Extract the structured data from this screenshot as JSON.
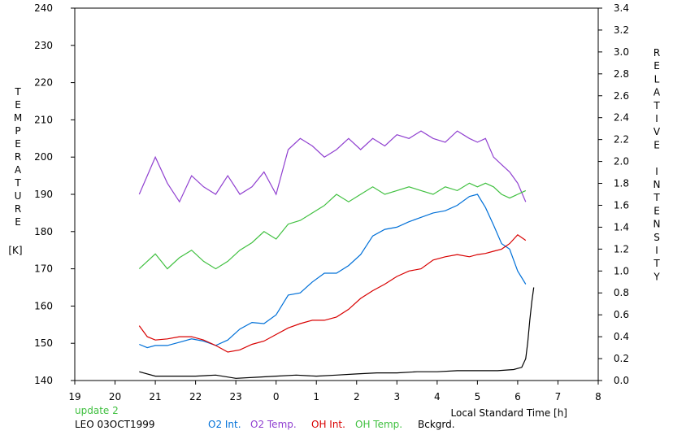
{
  "chart_data": {
    "type": "line",
    "x_axis": {
      "label": "Local Standard Time [h]",
      "range": [
        19,
        32
      ],
      "ticks": [
        19,
        20,
        21,
        22,
        23,
        24,
        25,
        26,
        27,
        28,
        29,
        30,
        31,
        32
      ],
      "tick_labels": [
        "19",
        "20",
        "21",
        "22",
        "23",
        "0",
        "1",
        "2",
        "3",
        "4",
        "5",
        "6",
        "7",
        "8"
      ]
    },
    "y_left": {
      "label_letters": [
        "T",
        "E",
        "M",
        "P",
        "E",
        "R",
        "A",
        "T",
        "U",
        "R",
        "E"
      ],
      "unit": "[K]",
      "range": [
        140,
        240
      ],
      "ticks": [
        140,
        150,
        160,
        170,
        180,
        190,
        200,
        210,
        220,
        230,
        240
      ],
      "tick_labels": [
        "140",
        "150",
        "160",
        "170",
        "180",
        "190",
        "200",
        "210",
        "220",
        "230",
        "240"
      ]
    },
    "y_right": {
      "label_letters": [
        "R",
        "E",
        "L",
        "A",
        "T",
        "I",
        "V",
        "E",
        "",
        "I",
        "N",
        "T",
        "E",
        "N",
        "S",
        "I",
        "T",
        "Y"
      ],
      "range": [
        0.0,
        3.4
      ],
      "ticks": [
        0.0,
        0.2,
        0.4,
        0.6,
        0.8,
        1.0,
        1.2,
        1.4,
        1.6,
        1.8,
        2.0,
        2.2,
        2.4,
        2.6,
        2.8,
        3.0,
        3.2,
        3.4
      ],
      "tick_labels": [
        "0.0",
        "0.2",
        "0.4",
        "0.6",
        "0.8",
        "1.0",
        "1.2",
        "1.4",
        "1.6",
        "1.8",
        "2.0",
        "2.2",
        "2.4",
        "2.6",
        "2.8",
        "3.0",
        "3.2",
        "3.4"
      ]
    },
    "grid": false,
    "annotations": {
      "update": "update 2",
      "site_date": "LEO 03OCT1999"
    },
    "series": [
      {
        "name": "O2 Int.",
        "axis": "right",
        "color": "#0070d8",
        "x": [
          20.6,
          20.8,
          21.0,
          21.3,
          21.6,
          21.9,
          22.2,
          22.5,
          22.8,
          23.1,
          23.4,
          23.7,
          24.0,
          24.3,
          24.6,
          24.9,
          25.2,
          25.5,
          25.8,
          26.1,
          26.4,
          26.7,
          27.0,
          27.3,
          27.6,
          27.9,
          28.2,
          28.5,
          28.8,
          29.0,
          29.2,
          29.4,
          29.6,
          29.8,
          30.0,
          30.2
        ],
        "y": [
          0.33,
          0.3,
          0.32,
          0.32,
          0.35,
          0.38,
          0.36,
          0.32,
          0.37,
          0.47,
          0.53,
          0.52,
          0.6,
          0.78,
          0.8,
          0.9,
          0.98,
          0.98,
          1.05,
          1.15,
          1.32,
          1.38,
          1.4,
          1.45,
          1.49,
          1.53,
          1.55,
          1.6,
          1.68,
          1.7,
          1.58,
          1.42,
          1.25,
          1.2,
          1.0,
          0.88
        ]
      },
      {
        "name": "O2 Temp.",
        "axis": "left",
        "color": "#9040d0",
        "x": [
          20.6,
          20.8,
          21.0,
          21.3,
          21.6,
          21.9,
          22.2,
          22.5,
          22.8,
          23.1,
          23.4,
          23.7,
          24.0,
          24.3,
          24.6,
          24.9,
          25.2,
          25.5,
          25.8,
          26.1,
          26.4,
          26.7,
          27.0,
          27.3,
          27.6,
          27.9,
          28.2,
          28.5,
          28.8,
          29.0,
          29.2,
          29.4,
          29.6,
          29.8,
          30.0,
          30.2
        ],
        "y": [
          190,
          195,
          200,
          193,
          188,
          195,
          192,
          190,
          195,
          190,
          192,
          196,
          190,
          202,
          205,
          203,
          200,
          202,
          205,
          202,
          205,
          203,
          206,
          205,
          207,
          205,
          204,
          207,
          205,
          204,
          205,
          200,
          198,
          196,
          193,
          188
        ]
      },
      {
        "name": "OH Int.",
        "axis": "right",
        "color": "#d80000",
        "x": [
          20.6,
          20.8,
          21.0,
          21.3,
          21.6,
          21.9,
          22.2,
          22.5,
          22.8,
          23.1,
          23.4,
          23.7,
          24.0,
          24.3,
          24.6,
          24.9,
          25.2,
          25.5,
          25.8,
          26.1,
          26.4,
          26.7,
          27.0,
          27.3,
          27.6,
          27.9,
          28.2,
          28.5,
          28.8,
          29.0,
          29.2,
          29.4,
          29.6,
          29.8,
          30.0,
          30.2
        ],
        "y": [
          0.5,
          0.4,
          0.37,
          0.38,
          0.4,
          0.4,
          0.37,
          0.32,
          0.26,
          0.28,
          0.33,
          0.36,
          0.42,
          0.48,
          0.52,
          0.55,
          0.55,
          0.58,
          0.65,
          0.75,
          0.82,
          0.88,
          0.95,
          1.0,
          1.02,
          1.1,
          1.13,
          1.15,
          1.13,
          1.15,
          1.16,
          1.18,
          1.2,
          1.25,
          1.33,
          1.28
        ]
      },
      {
        "name": "OH Temp.",
        "axis": "left",
        "color": "#40c040",
        "x": [
          20.6,
          20.8,
          21.0,
          21.3,
          21.6,
          21.9,
          22.2,
          22.5,
          22.8,
          23.1,
          23.4,
          23.7,
          24.0,
          24.3,
          24.6,
          24.9,
          25.2,
          25.5,
          25.8,
          26.1,
          26.4,
          26.7,
          27.0,
          27.3,
          27.6,
          27.9,
          28.2,
          28.5,
          28.8,
          29.0,
          29.2,
          29.4,
          29.6,
          29.8,
          30.0,
          30.2
        ],
        "y": [
          170,
          172,
          174,
          170,
          173,
          175,
          172,
          170,
          172,
          175,
          177,
          180,
          178,
          182,
          183,
          185,
          187,
          190,
          188,
          190,
          192,
          190,
          191,
          192,
          191,
          190,
          192,
          191,
          193,
          192,
          193,
          192,
          190,
          189,
          190,
          191
        ]
      },
      {
        "name": "Bckgrd.",
        "axis": "right",
        "color": "#000000",
        "x": [
          20.6,
          21.0,
          21.5,
          22.0,
          22.5,
          23.0,
          23.5,
          24.0,
          24.5,
          25.0,
          25.5,
          26.0,
          26.5,
          27.0,
          27.5,
          28.0,
          28.5,
          29.0,
          29.5,
          29.9,
          30.1,
          30.2,
          30.25,
          30.3,
          30.35,
          30.4
        ],
        "y": [
          0.08,
          0.04,
          0.04,
          0.04,
          0.05,
          0.02,
          0.03,
          0.04,
          0.05,
          0.04,
          0.05,
          0.06,
          0.07,
          0.07,
          0.08,
          0.08,
          0.09,
          0.09,
          0.09,
          0.1,
          0.12,
          0.2,
          0.35,
          0.55,
          0.72,
          0.85
        ]
      }
    ]
  }
}
